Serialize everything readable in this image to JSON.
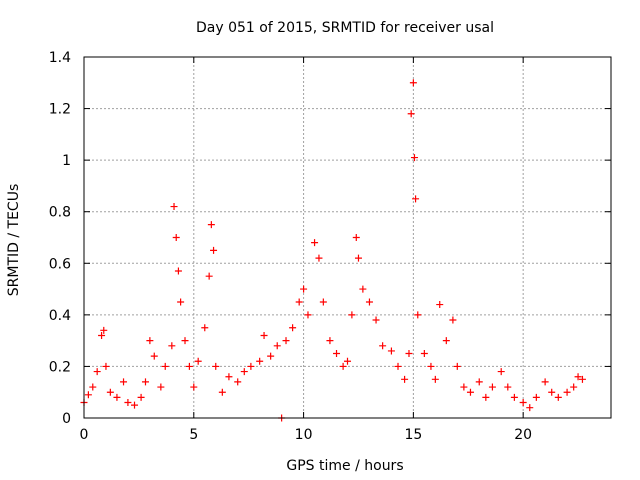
{
  "chart_data": {
    "type": "scatter",
    "title": "Day 051 of 2015, SRMTID for receiver usal",
    "xlabel": "GPS time / hours",
    "ylabel": "SRMTID / TECUs",
    "xlim": [
      0,
      24
    ],
    "ylim": [
      0,
      1.4
    ],
    "x_ticks": [
      0,
      5,
      10,
      15,
      20
    ],
    "x_tick_labels": [
      "0",
      "5",
      "10",
      "15",
      "20"
    ],
    "y_ticks": [
      0,
      0.2,
      0.4,
      0.6,
      0.8,
      1.0,
      1.2,
      1.4
    ],
    "y_tick_labels": [
      "0",
      "0.2",
      "0.4",
      "0.6",
      "0.8",
      "1",
      "1.2",
      "1.4"
    ],
    "grid": true,
    "marker": "+",
    "series_color": "#ff0000",
    "series": [
      {
        "name": "SRMTID",
        "points": [
          [
            0.0,
            0.06
          ],
          [
            0.2,
            0.09
          ],
          [
            0.4,
            0.12
          ],
          [
            0.6,
            0.18
          ],
          [
            0.8,
            0.32
          ],
          [
            0.9,
            0.34
          ],
          [
            1.0,
            0.2
          ],
          [
            1.2,
            0.1
          ],
          [
            1.5,
            0.08
          ],
          [
            1.8,
            0.14
          ],
          [
            2.0,
            0.06
          ],
          [
            2.3,
            0.05
          ],
          [
            2.6,
            0.08
          ],
          [
            2.8,
            0.14
          ],
          [
            3.0,
            0.3
          ],
          [
            3.2,
            0.24
          ],
          [
            3.5,
            0.12
          ],
          [
            3.7,
            0.2
          ],
          [
            4.0,
            0.28
          ],
          [
            4.1,
            0.82
          ],
          [
            4.2,
            0.7
          ],
          [
            4.3,
            0.57
          ],
          [
            4.4,
            0.45
          ],
          [
            4.6,
            0.3
          ],
          [
            4.8,
            0.2
          ],
          [
            5.0,
            0.12
          ],
          [
            5.2,
            0.22
          ],
          [
            5.5,
            0.35
          ],
          [
            5.7,
            0.55
          ],
          [
            5.8,
            0.75
          ],
          [
            5.9,
            0.65
          ],
          [
            6.0,
            0.2
          ],
          [
            6.3,
            0.1
          ],
          [
            6.6,
            0.16
          ],
          [
            7.0,
            0.14
          ],
          [
            7.3,
            0.18
          ],
          [
            7.6,
            0.2
          ],
          [
            8.0,
            0.22
          ],
          [
            8.2,
            0.32
          ],
          [
            8.5,
            0.24
          ],
          [
            8.8,
            0.28
          ],
          [
            9.0,
            0.0
          ],
          [
            9.2,
            0.3
          ],
          [
            9.5,
            0.35
          ],
          [
            9.8,
            0.45
          ],
          [
            10.0,
            0.5
          ],
          [
            10.2,
            0.4
          ],
          [
            10.5,
            0.68
          ],
          [
            10.7,
            0.62
          ],
          [
            10.9,
            0.45
          ],
          [
            11.2,
            0.3
          ],
          [
            11.5,
            0.25
          ],
          [
            11.8,
            0.2
          ],
          [
            12.0,
            0.22
          ],
          [
            12.2,
            0.4
          ],
          [
            12.4,
            0.7
          ],
          [
            12.5,
            0.62
          ],
          [
            12.7,
            0.5
          ],
          [
            13.0,
            0.45
          ],
          [
            13.3,
            0.38
          ],
          [
            13.6,
            0.28
          ],
          [
            14.0,
            0.26
          ],
          [
            14.3,
            0.2
          ],
          [
            14.6,
            0.15
          ],
          [
            14.8,
            0.25
          ],
          [
            14.9,
            1.18
          ],
          [
            15.0,
            1.3
          ],
          [
            15.05,
            1.01
          ],
          [
            15.1,
            0.85
          ],
          [
            15.2,
            0.4
          ],
          [
            15.5,
            0.25
          ],
          [
            15.8,
            0.2
          ],
          [
            16.0,
            0.15
          ],
          [
            16.2,
            0.44
          ],
          [
            16.5,
            0.3
          ],
          [
            16.8,
            0.38
          ],
          [
            17.0,
            0.2
          ],
          [
            17.3,
            0.12
          ],
          [
            17.6,
            0.1
          ],
          [
            18.0,
            0.14
          ],
          [
            18.3,
            0.08
          ],
          [
            18.6,
            0.12
          ],
          [
            19.0,
            0.18
          ],
          [
            19.3,
            0.12
          ],
          [
            19.6,
            0.08
          ],
          [
            20.0,
            0.06
          ],
          [
            20.3,
            0.04
          ],
          [
            20.6,
            0.08
          ],
          [
            21.0,
            0.14
          ],
          [
            21.3,
            0.1
          ],
          [
            21.6,
            0.08
          ],
          [
            22.0,
            0.1
          ],
          [
            22.3,
            0.12
          ],
          [
            22.5,
            0.16
          ],
          [
            22.7,
            0.15
          ]
        ]
      }
    ]
  }
}
